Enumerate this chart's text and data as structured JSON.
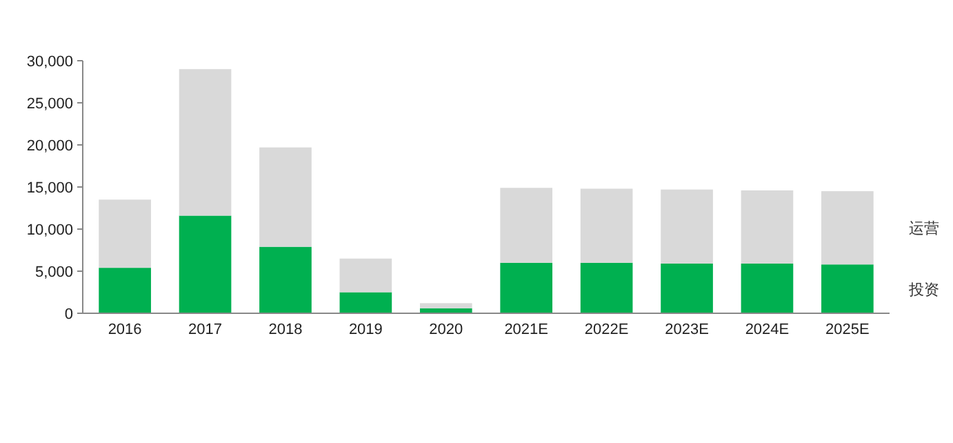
{
  "chart_data": {
    "type": "bar",
    "stacked": true,
    "categories": [
      "2016",
      "2017",
      "2018",
      "2019",
      "2020",
      "2021E",
      "2022E",
      "2023E",
      "2024E",
      "2025E"
    ],
    "series": [
      {
        "name": "投资",
        "color": "#00b050",
        "values": [
          5400,
          11600,
          7900,
          2500,
          600,
          6000,
          6000,
          5900,
          5900,
          5800
        ]
      },
      {
        "name": "运营",
        "color": "#d9d9d9",
        "values": [
          8100,
          17400,
          11800,
          4000,
          600,
          8900,
          8800,
          8800,
          8700,
          8700
        ]
      }
    ],
    "ylim": [
      0,
      30000
    ],
    "yticks": [
      {
        "value": 0,
        "label": "0"
      },
      {
        "value": 5000,
        "label": "5,000"
      },
      {
        "value": 10000,
        "label": "10,000"
      },
      {
        "value": 15000,
        "label": "15,000"
      },
      {
        "value": 20000,
        "label": "20,000"
      },
      {
        "value": 25000,
        "label": "25,000"
      },
      {
        "value": 30000,
        "label": "30,000"
      }
    ],
    "grid": false,
    "legend": "right"
  }
}
